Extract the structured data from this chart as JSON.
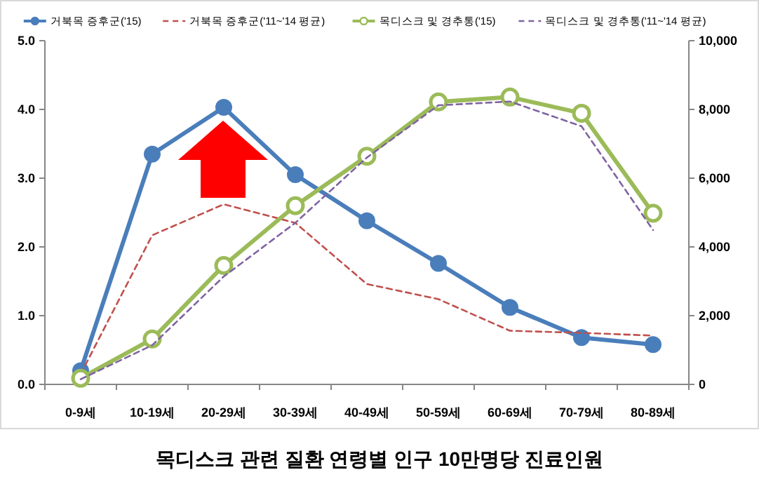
{
  "chart_data": {
    "type": "line",
    "title": "목디스크 관련 질환 연령별 인구 10만명당 진료인원",
    "categories": [
      "0-9세",
      "10-19세",
      "20-29세",
      "30-39세",
      "40-49세",
      "50-59세",
      "60-69세",
      "70-79세",
      "80-89세"
    ],
    "series": [
      {
        "name": "거북목 증후군('15)",
        "color": "#4a7ebb",
        "values": [
          0.2,
          3.35,
          4.03,
          3.05,
          2.38,
          1.76,
          1.12,
          0.68,
          0.58
        ],
        "marker": "circle",
        "line_style": "solid"
      },
      {
        "name": "거북목 증후군('11~'14 평균)",
        "color": "#c0504d",
        "values": [
          0.15,
          2.17,
          2.62,
          2.35,
          1.46,
          1.24,
          0.78,
          0.75,
          0.71
        ],
        "marker": "none",
        "line_style": "dashed"
      },
      {
        "name": "목디스크 및 경추통('15)",
        "color": "#9bbb59",
        "values": [
          180,
          1320,
          3460,
          5200,
          6640,
          8220,
          8360,
          7890,
          4980
        ],
        "marker": "circle",
        "line_style": "solid",
        "axis": "y2"
      },
      {
        "name": "목디스크 및 경추통('11~'14 평균)",
        "color": "#8064a2",
        "values": [
          150,
          1140,
          3140,
          4700,
          6600,
          8120,
          8230,
          7510,
          4490
        ],
        "marker": "none",
        "line_style": "dashed",
        "axis": "y2"
      }
    ],
    "ylim": [
      0,
      5
    ],
    "yticks": [
      {
        "value": 0,
        "label": "0.0"
      },
      {
        "value": 1,
        "label": "1.0"
      },
      {
        "value": 2,
        "label": "2.0"
      },
      {
        "value": 3,
        "label": "3.0"
      },
      {
        "value": 4,
        "label": "4.0"
      },
      {
        "value": 5,
        "label": "5.0"
      }
    ],
    "y2lim": [
      0,
      10000
    ],
    "y2ticks": [
      0,
      {
        "value": 2000,
        "label": "2,000"
      },
      {
        "value": 4000,
        "label": "4,000"
      },
      {
        "value": 6000,
        "label": "6,000"
      },
      {
        "value": 8000,
        "label": "8,000"
      },
      {
        "value": 10000,
        "label": "10,000"
      }
    ],
    "grid": false,
    "legend": "top"
  }
}
